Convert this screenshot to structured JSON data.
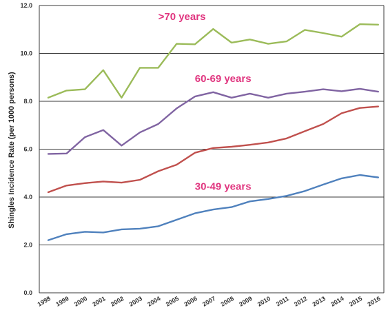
{
  "chart_data": {
    "type": "line",
    "ylabel": "Shingles Incidence Rate (per 1000 persons)",
    "xlabel": "",
    "ylim": [
      0,
      12
    ],
    "yticks": [
      "0.0",
      "2.0",
      "4.0",
      "6.0",
      "8.0",
      "10.0",
      "12.0"
    ],
    "grid": true,
    "x": [
      "1998",
      "1999",
      "2000",
      "2001",
      "2002",
      "2003",
      "2004",
      "2005",
      "2006",
      "2007",
      "2008",
      "2009",
      "2010",
      "2011",
      "2012",
      "2013",
      "2014",
      "2015",
      "2016"
    ],
    "series": [
      {
        "key": "s70",
        "color": "#9bbb59",
        "values": [
          8.15,
          8.45,
          8.5,
          9.3,
          8.15,
          9.4,
          9.4,
          10.4,
          10.38,
          11.02,
          10.45,
          10.58,
          10.4,
          10.5,
          10.98,
          10.85,
          10.7,
          11.22,
          11.2
        ]
      },
      {
        "key": "s6069",
        "color": "#8064a2",
        "values": [
          5.8,
          5.82,
          6.5,
          6.8,
          6.15,
          6.7,
          7.05,
          7.7,
          8.2,
          8.38,
          8.15,
          8.32,
          8.15,
          8.32,
          8.4,
          8.5,
          8.42,
          8.52,
          8.4
        ]
      },
      {
        "key": "s5059",
        "color": "#c0504d",
        "values": [
          4.2,
          4.48,
          4.58,
          4.65,
          4.6,
          4.72,
          5.08,
          5.35,
          5.85,
          6.05,
          6.1,
          6.18,
          6.28,
          6.45,
          6.75,
          7.05,
          7.5,
          7.72,
          7.78
        ]
      },
      {
        "key": "s3049",
        "color": "#4f81bd",
        "values": [
          2.2,
          2.45,
          2.55,
          2.52,
          2.65,
          2.68,
          2.78,
          3.05,
          3.32,
          3.48,
          3.58,
          3.82,
          3.92,
          4.05,
          4.25,
          4.52,
          4.78,
          4.92,
          4.82
        ]
      }
    ],
    "annotations": [
      {
        "text": ">70 years",
        "color": "#e0357f",
        "x": "2004",
        "y": 11.4
      },
      {
        "text": "60-69  years",
        "color": "#e0357f",
        "x": "2006",
        "y": 8.8
      },
      {
        "text": "30-49  years",
        "color": "#e0357f",
        "x": "2006",
        "y": 4.3
      }
    ]
  }
}
